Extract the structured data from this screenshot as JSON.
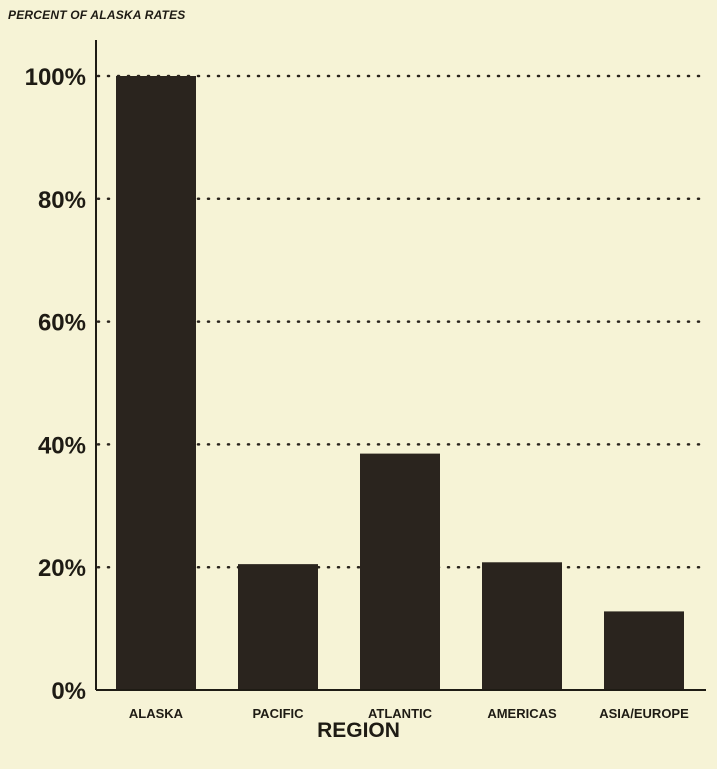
{
  "chart_data": {
    "type": "bar",
    "ylabel": "PERCENT OF ALASKA RATES",
    "xlabel": "REGION",
    "categories": [
      "ALASKA",
      "PACIFIC",
      "ATLANTIC",
      "AMERICAS",
      "ASIA/EUROPE"
    ],
    "values": [
      100,
      20.5,
      38.5,
      20.8,
      12.8
    ],
    "ylim": [
      0,
      100
    ],
    "yticks": [
      0,
      20,
      40,
      60,
      80,
      100
    ],
    "ytick_labels": [
      "0%",
      "20%",
      "40%",
      "60%",
      "80%",
      "100%"
    ],
    "grid": "dotted horizontal",
    "bar_color": "#2a241e",
    "background_color": "#f6f3d6"
  }
}
